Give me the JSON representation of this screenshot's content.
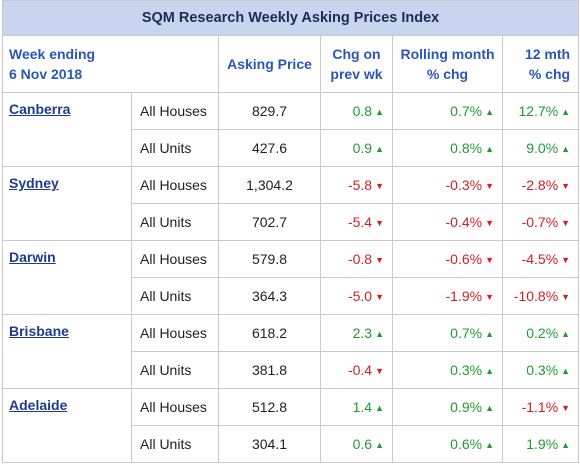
{
  "title": "SQM Research Weekly Asking Prices Index",
  "headers": {
    "week_label": "Week ending",
    "week_date": "6 Nov 2018",
    "asking_price": "Asking Price",
    "chg_line1": "Chg on",
    "chg_line2": "prev wk",
    "rolling_line1": "Rolling month",
    "rolling_line2": "% chg",
    "mth12_line1": "12 mth",
    "mth12_line2": "% chg"
  },
  "colors": {
    "up": "#1f9d2e",
    "down": "#d0202a",
    "header_bg": "#c7d6ee"
  },
  "cities": [
    {
      "name": "Canberra",
      "rows": [
        {
          "type": "All Houses",
          "price": "829.7",
          "chg": "0.8",
          "chg_dir": "up",
          "rolling": "0.7%",
          "rolling_dir": "up",
          "mth12": "12.7%",
          "mth12_dir": "up"
        },
        {
          "type": "All Units",
          "price": "427.6",
          "chg": "0.9",
          "chg_dir": "up",
          "rolling": "0.8%",
          "rolling_dir": "up",
          "mth12": "9.0%",
          "mth12_dir": "up"
        }
      ]
    },
    {
      "name": "Sydney",
      "rows": [
        {
          "type": "All Houses",
          "price": "1,304.2",
          "chg": "-5.8",
          "chg_dir": "down",
          "rolling": "-0.3%",
          "rolling_dir": "down",
          "mth12": "-2.8%",
          "mth12_dir": "down"
        },
        {
          "type": "All Units",
          "price": "702.7",
          "chg": "-5.4",
          "chg_dir": "down",
          "rolling": "-0.4%",
          "rolling_dir": "down",
          "mth12": "-0.7%",
          "mth12_dir": "down"
        }
      ]
    },
    {
      "name": "Darwin",
      "rows": [
        {
          "type": "All Houses",
          "price": "579.8",
          "chg": "-0.8",
          "chg_dir": "down",
          "rolling": "-0.6%",
          "rolling_dir": "down",
          "mth12": "-4.5%",
          "mth12_dir": "down"
        },
        {
          "type": "All Units",
          "price": "364.3",
          "chg": "-5.0",
          "chg_dir": "down",
          "rolling": "-1.9%",
          "rolling_dir": "down",
          "mth12": "-10.8%",
          "mth12_dir": "down"
        }
      ]
    },
    {
      "name": "Brisbane",
      "rows": [
        {
          "type": "All Houses",
          "price": "618.2",
          "chg": "2.3",
          "chg_dir": "up",
          "rolling": "0.7%",
          "rolling_dir": "up",
          "mth12": "0.2%",
          "mth12_dir": "up"
        },
        {
          "type": "All Units",
          "price": "381.8",
          "chg": "-0.4",
          "chg_dir": "down",
          "rolling": "0.3%",
          "rolling_dir": "up",
          "mth12": "0.3%",
          "mth12_dir": "up"
        }
      ]
    },
    {
      "name": "Adelaide",
      "rows": [
        {
          "type": "All Houses",
          "price": "512.8",
          "chg": "1.4",
          "chg_dir": "up",
          "rolling": "0.9%",
          "rolling_dir": "up",
          "mth12": "-1.1%",
          "mth12_dir": "down"
        },
        {
          "type": "All Units",
          "price": "304.1",
          "chg": "0.6",
          "chg_dir": "up",
          "rolling": "0.6%",
          "rolling_dir": "up",
          "mth12": "1.9%",
          "mth12_dir": "up"
        }
      ]
    }
  ]
}
